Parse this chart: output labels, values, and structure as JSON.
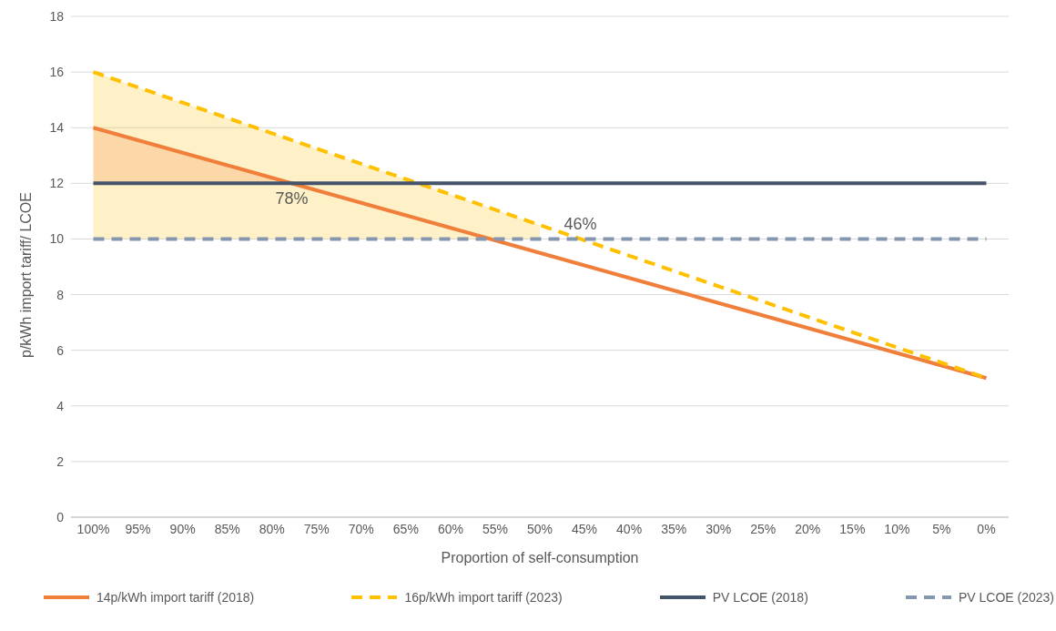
{
  "chart_data": {
    "type": "line",
    "xlabel": "Proportion of self-consumption",
    "ylabel": "p/kWh import tariff/ LCOE",
    "categories": [
      "100%",
      "95%",
      "90%",
      "85%",
      "80%",
      "75%",
      "70%",
      "65%",
      "60%",
      "55%",
      "50%",
      "45%",
      "40%",
      "35%",
      "30%",
      "25%",
      "20%",
      "15%",
      "10%",
      "5%",
      "0%"
    ],
    "series": [
      {
        "name": "14p/kWh import tariff (2018)",
        "color": "#f07f3c",
        "line_style": "solid",
        "values": [
          14,
          13.55,
          13.1,
          12.65,
          12.2,
          11.75,
          11.3,
          10.85,
          10.4,
          9.95,
          9.5,
          9.05,
          8.6,
          8.15,
          7.7,
          7.25,
          6.8,
          6.35,
          5.9,
          5.45,
          5
        ],
        "lower": [
          12,
          12,
          12,
          12,
          12,
          null,
          null,
          null,
          null,
          null,
          null,
          null,
          null,
          null,
          null,
          null,
          null,
          null,
          null,
          null,
          null
        ],
        "upper": [
          14,
          13.55,
          13.1,
          12.65,
          12.2,
          null,
          null,
          null,
          null,
          null,
          null,
          null,
          null,
          null,
          null,
          null,
          null,
          null,
          null,
          null,
          null
        ]
      },
      {
        "name": "16p/kWh import tariff (2023)",
        "color": "#ffc000",
        "line_style": "dashed",
        "values": [
          16,
          15.45,
          14.9,
          14.35,
          13.8,
          13.25,
          12.7,
          12.15,
          11.6,
          11.05,
          10.5,
          9.95,
          9.4,
          8.85,
          8.3,
          7.75,
          7.2,
          6.65,
          6.1,
          5.55,
          5
        ],
        "lower": [
          10,
          10,
          10,
          10,
          10,
          10,
          10,
          10,
          10,
          10,
          10,
          null,
          null,
          null,
          null,
          null,
          null,
          null,
          null,
          null,
          null
        ],
        "upper": [
          16,
          15.45,
          14.9,
          14.35,
          13.8,
          13.25,
          12.7,
          12.15,
          11.6,
          11.05,
          10.5,
          null,
          null,
          null,
          null,
          null,
          null,
          null,
          null,
          null,
          null
        ]
      },
      {
        "name": "PV LCOE (2018)",
        "color": "#44546a",
        "line_style": "solid",
        "values": [
          12,
          12,
          12,
          12,
          12,
          12,
          12,
          12,
          12,
          12,
          12,
          12,
          12,
          12,
          12,
          12,
          12,
          12,
          12,
          12,
          12
        ]
      },
      {
        "name": "PV LCOE (2023)",
        "color": "#8496b0",
        "line_style": "dashed",
        "values": [
          10,
          10,
          10,
          10,
          10,
          10,
          10,
          10,
          10,
          10,
          10,
          10,
          10,
          10,
          10,
          10,
          10,
          10,
          10,
          10,
          10
        ]
      }
    ],
    "annotations": [
      {
        "text": "78%",
        "y": 12
      },
      {
        "text": "46%",
        "y": 10
      }
    ],
    "ylim": [
      0,
      18
    ],
    "yticks": [
      0,
      2,
      4,
      6,
      8,
      10,
      12,
      14,
      16,
      18
    ],
    "grid": "y",
    "legend": "bottom",
    "marker": "none"
  }
}
